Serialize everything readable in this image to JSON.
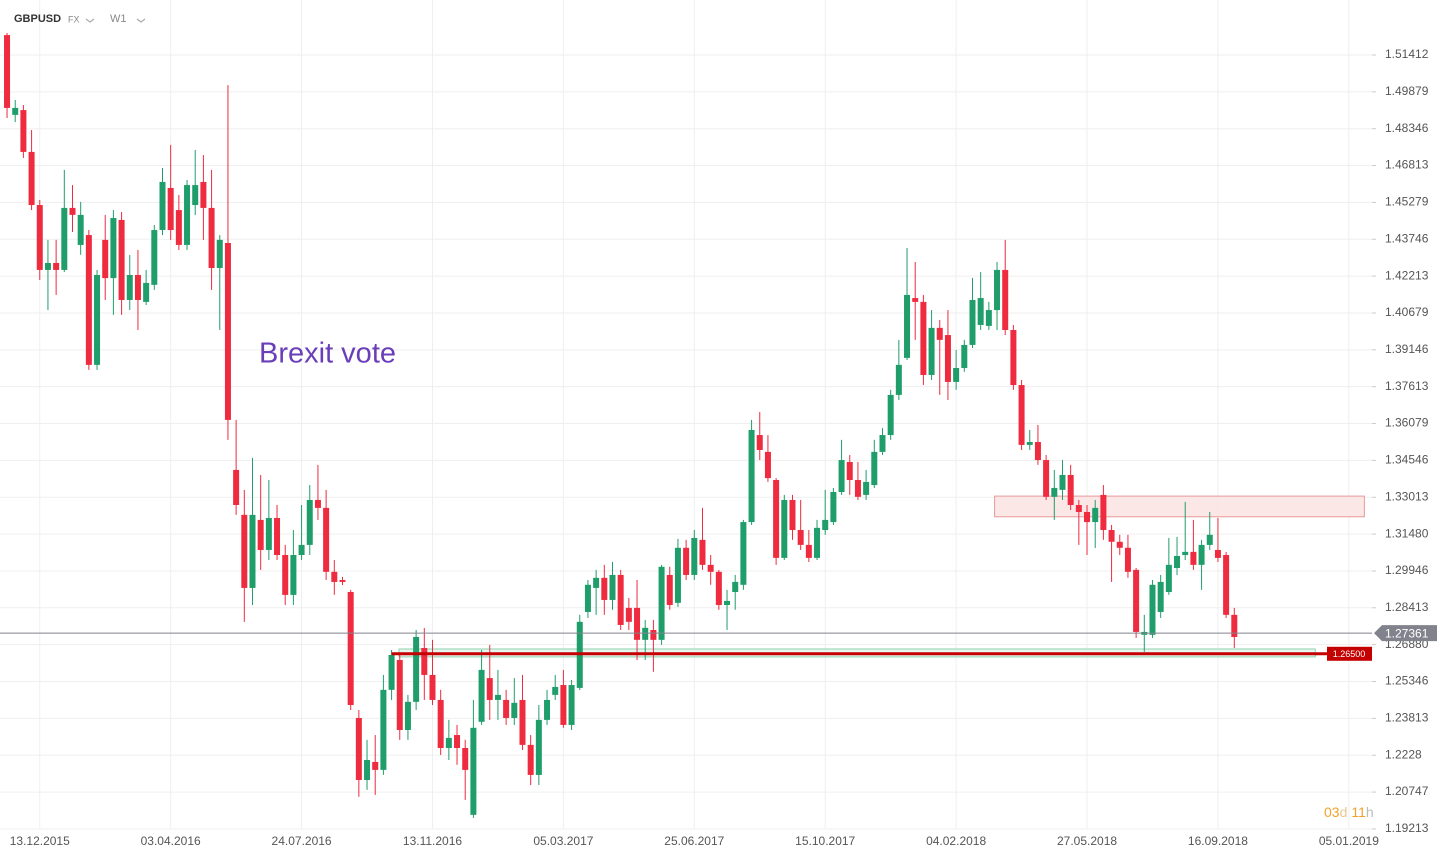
{
  "chart_data": {
    "type": "candlestick",
    "symbol": "GBPUSD",
    "market": "FX",
    "timeframe": "W1",
    "annotation_text": "Brexit vote",
    "up_color": "#1f9e6b",
    "down_color": "#ee2b3f",
    "ylim": [
      1.1842,
      1.537
    ],
    "yticks": [
      1.51412,
      1.49879,
      1.48346,
      1.46813,
      1.45279,
      1.43746,
      1.42213,
      1.40679,
      1.39146,
      1.37613,
      1.36079,
      1.34546,
      1.33013,
      {
        "value": 1.3148,
        "label": "1.31480"
      },
      1.29946,
      1.28413,
      {
        "value": 1.2688,
        "label": "1.26880"
      },
      1.25346,
      1.23813,
      1.2228,
      1.20747,
      1.19213
    ],
    "xlim": [
      -0.86,
      166.83
    ],
    "xticks": [
      {
        "value": 4,
        "label": "13.12.2015"
      },
      {
        "value": 20,
        "label": "03.04.2016"
      },
      {
        "value": 36,
        "label": "24.07.2016"
      },
      {
        "value": 52,
        "label": "13.11.2016"
      },
      {
        "value": 68,
        "label": "05.03.2017"
      },
      {
        "value": 84,
        "label": "25.06.2017"
      },
      {
        "value": 100,
        "label": "15.10.2017"
      },
      {
        "value": 116,
        "label": "04.02.2018"
      },
      {
        "value": 132,
        "label": "27.05.2018"
      },
      {
        "value": 148,
        "label": "16.09.2018"
      },
      {
        "value": 164,
        "label": "05.01.2019"
      }
    ],
    "grid": true,
    "open": [
      1.5224,
      1.4892,
      1.4912,
      1.4738,
      1.4517,
      1.4247,
      1.4276,
      1.4247,
      1.4505,
      1.4351,
      1.4392,
      1.3852,
      1.4372,
      1.4213,
      1.4455,
      1.4122,
      1.4226,
      1.4114,
      1.4185,
      1.4413,
      1.4588,
      1.4496,
      1.4351,
      1.4517,
      1.4613,
      1.4505,
      1.4255,
      1.4359,
      1.3415,
      1.3228,
      1.2924,
      1.3207,
      1.3082,
      1.3215,
      1.3061,
      1.2895,
      1.3061,
      1.3103,
      1.329,
      1.3257,
      1.2991,
      1.2957,
      1.2907,
      1.2383,
      1.2125,
      1.22,
      1.2167,
      1.25,
      1.2624,
      1.2333,
      1.245,
      1.2674,
      1.2562,
      1.2458,
      1.2258,
      1.2312,
      1.2258,
      1.198,
      1.2367,
      1.2549,
      1.2458,
      1.2458,
      1.2383,
      1.2458,
      1.2271,
      1.2146,
      1.2375,
      1.2479,
      1.252,
      1.2354,
      1.2508,
      1.2824,
      1.2924,
      1.2966,
      1.2874,
      1.2978,
      1.2841,
      1.2841,
      1.2708,
      1.2749,
      1.2708,
      1.2978,
      1.2862,
      1.3091,
      1.2978,
      1.3124,
      1.302,
      1.2991,
      1.2853,
      1.2907,
      1.2937,
      1.3198,
      1.356,
      1.349,
      1.3373,
      1.3049,
      1.329,
      1.3165,
      1.3103,
      1.3049,
      1.3165,
      1.3198,
      1.3323,
      1.3448,
      1.3373,
      1.3311,
      1.3352,
      1.349,
      1.356,
      1.3727,
      1.3881,
      1.413,
      1.4114,
      1.381,
      1.4006,
      1.3976,
      1.3781,
      1.3839,
      1.3935,
      1.4018,
      1.4014,
      1.408,
      1.4247,
      1.3997,
      1.3768,
      1.3519,
      1.3531,
      1.3456,
      1.3303,
      1.3332,
      1.3394,
      1.3269,
      1.324,
      1.3198,
      1.3311,
      1.3165,
      1.3116,
      1.3091,
      1.2999,
      1.2729,
      1.2729,
      1.2824,
      1.2907,
      1.3007,
      1.3061,
      1.3074,
      1.302,
      1.3103,
      1.3082,
      1.3061,
      1.2812
    ],
    "high": [
      1.5233,
      1.4954,
      1.4933,
      1.4829,
      1.4538,
      1.4372,
      1.4372,
      1.4663,
      1.46,
      1.453,
      1.4413,
      1.4247,
      1.4476,
      1.4496,
      1.4488,
      1.4309,
      1.433,
      1.4247,
      1.4434,
      1.4671,
      1.4767,
      1.4559,
      1.4621,
      1.4746,
      1.4725,
      1.4663,
      1.4392,
      1.5016,
      1.3623,
      1.3332,
      1.3465,
      1.3394,
      1.3373,
      1.3269,
      1.3103,
      1.3165,
      1.3269,
      1.3352,
      1.3436,
      1.3332,
      1.304,
      1.297,
      1.2916,
      1.2416,
      1.2292,
      1.2312,
      1.2562,
      1.2666,
      1.2645,
      1.2479,
      1.2749,
      1.2757,
      1.2708,
      1.25,
      1.2375,
      1.2354,
      1.2292,
      1.2458,
      1.2666,
      1.2687,
      1.2583,
      1.25,
      1.2549,
      1.2562,
      1.2312,
      1.2437,
      1.25,
      1.2562,
      1.2583,
      1.2541,
      1.2812,
      1.2957,
      1.2999,
      1.302,
      1.3032,
      1.2999,
      1.2882,
      1.2957,
      1.2791,
      1.2791,
      1.302,
      1.3012,
      1.3128,
      1.3124,
      1.3165,
      1.3257,
      1.3061,
      1.2999,
      1.2916,
      1.2978,
      1.3207,
      1.3623,
      1.3656,
      1.356,
      1.3381,
      1.3311,
      1.3311,
      1.329,
      1.3165,
      1.3207,
      1.3332,
      1.334,
      1.354,
      1.3477,
      1.3448,
      1.3415,
      1.354,
      1.3589,
      1.3748,
      1.3956,
      1.4338,
      1.428,
      1.4143,
      1.408,
      1.4039,
      1.408,
      1.3914,
      1.3956,
      1.4214,
      1.4238,
      1.4114,
      1.428,
      1.4372,
      1.4018,
      1.3789,
      1.3581,
      1.3602,
      1.3477,
      1.3415,
      1.3456,
      1.3436,
      1.329,
      1.3269,
      1.329,
      1.3352,
      1.3186,
      1.3145,
      1.3145,
      1.3007,
      1.2812,
      1.2957,
      1.2978,
      1.3132,
      1.3136,
      1.3282,
      1.3207,
      1.3124,
      1.324,
      1.3215,
      1.3074,
      1.2841
    ],
    "low": [
      1.4879,
      1.4862,
      1.4713,
      1.4496,
      1.4205,
      1.408,
      1.4143,
      1.4238,
      1.4405,
      1.431,
      1.3831,
      1.3831,
      1.4122,
      1.406,
      1.406,
      1.408,
      1.3997,
      1.4101,
      1.4164,
      1.4392,
      1.4372,
      1.433,
      1.433,
      1.4475,
      1.4372,
      1.4164,
      1.3997,
      1.354,
      1.3228,
      1.2783,
      1.2853,
      1.2999,
      1.304,
      1.304,
      1.2853,
      1.2853,
      1.304,
      1.3061,
      1.3207,
      1.2957,
      1.2895,
      1.2936,
      1.2416,
      1.2055,
      1.2084,
      1.2063,
      1.2146,
      1.2458,
      1.2292,
      1.2292,
      1.2416,
      1.2458,
      1.2437,
      1.2229,
      1.2208,
      1.2188,
      1.2042,
      1.1967,
      1.2354,
      1.2375,
      1.2375,
      1.2354,
      1.2354,
      1.225,
      1.2104,
      1.2104,
      1.2354,
      1.2458,
      1.2342,
      1.2333,
      1.2499,
      1.2799,
      1.2812,
      1.2812,
      1.2833,
      1.2749,
      1.2749,
      1.2624,
      1.2624,
      1.2575,
      1.2687,
      1.2833,
      1.2845,
      1.2957,
      1.2957,
      1.2999,
      1.2937,
      1.2833,
      1.2749,
      1.2833,
      1.2916,
      1.3186,
      1.3456,
      1.3365,
      1.302,
      1.304,
      1.3124,
      1.3082,
      1.3032,
      1.304,
      1.3145,
      1.3186,
      1.3311,
      1.3311,
      1.329,
      1.329,
      1.334,
      1.3477,
      1.354,
      1.3706,
      1.3872,
      1.3956,
      1.3768,
      1.3789,
      1.3727,
      1.3706,
      1.3748,
      1.3823,
      1.3922,
      1.3997,
      1.3997,
      1.3997,
      1.3976,
      1.3748,
      1.3498,
      1.3498,
      1.3436,
      1.329,
      1.3207,
      1.329,
      1.3248,
      1.3103,
      1.3061,
      1.309,
      1.3124,
      1.2949,
      1.3061,
      1.2966,
      1.2716,
      1.2658,
      1.2716,
      1.2799,
      1.2895,
      1.2978,
      1.304,
      1.2999,
      1.2916,
      1.3082,
      1.3032,
      1.2799,
      1.2674
    ],
    "close": [
      1.4921,
      1.4921,
      1.4738,
      1.4517,
      1.4247,
      1.4276,
      1.4247,
      1.4505,
      1.4476,
      1.4476,
      1.3852,
      1.4226,
      1.4213,
      1.4463,
      1.4122,
      1.4226,
      1.4122,
      1.4193,
      1.4413,
      1.4613,
      1.4413,
      1.4351,
      1.46,
      1.46,
      1.4505,
      1.4255,
      1.4372,
      1.3623,
      1.3269,
      1.2924,
      1.3228,
      1.3082,
      1.3215,
      1.3061,
      1.2895,
      1.3061,
      1.3103,
      1.329,
      1.3257,
      1.2991,
      1.2949,
      1.2949,
      1.2437,
      1.2125,
      1.2208,
      1.2167,
      1.25,
      1.2645,
      1.2333,
      1.245,
      1.272,
      1.2562,
      1.2458,
      1.2258,
      1.23,
      1.2258,
      1.2167,
      1.2342,
      1.2583,
      1.2458,
      1.2479,
      1.2383,
      1.2446,
      1.2271,
      1.2146,
      1.2375,
      1.2458,
      1.2512,
      1.2354,
      1.252,
      1.2783,
      1.2937,
      1.2966,
      1.2874,
      1.2978,
      1.277,
      1.2783,
      1.2708,
      1.2758,
      1.2708,
      1.3012,
      1.2853,
      1.3091,
      1.2978,
      1.3132,
      1.302,
      1.2991,
      1.2853,
      1.287,
      1.2949,
      1.3198,
      1.3581,
      1.3498,
      1.3381,
      1.3049,
      1.329,
      1.3165,
      1.3103,
      1.3049,
      1.3174,
      1.3207,
      1.3323,
      1.3456,
      1.3373,
      1.3303,
      1.3365,
      1.349,
      1.356,
      1.3727,
      1.3852,
      1.4143,
      1.4114,
      1.381,
      1.4006,
      1.3956,
      1.3781,
      1.3839,
      1.3935,
      1.4122,
      1.413,
      1.408,
      1.4247,
      1.3997,
      1.3768,
      1.3519,
      1.3531,
      1.3456,
      1.3303,
      1.334,
      1.3394,
      1.3269,
      1.324,
      1.3198,
      1.3257,
      1.3165,
      1.3116,
      1.3091,
      1.2991,
      1.2741,
      1.2741,
      1.2937,
      1.2949,
      1.302,
      1.3057,
      1.3074,
      1.302,
      1.3103,
      1.3145,
      1.3049,
      1.2812,
      1.272
    ],
    "price_lines": [
      {
        "price": 1.27361,
        "color": "#80838c"
      },
      {
        "price": {
          "value": 1.265,
          "label": "1.26500"
        },
        "color": "#c40000",
        "start": 47
      }
    ],
    "zones": [
      {
        "y": [
          1.322,
          1.3306
        ],
        "x": [
          120.7,
          165.9
        ],
        "fill": "#fbe3e3",
        "stroke": "#e89a9a"
      },
      {
        "y": [
          1.2637,
          1.267
        ],
        "x": [
          47.9,
          159.9
        ],
        "fill": "#e3f6ec",
        "stroke": "#8fd2ae"
      }
    ],
    "countdown": {
      "days": "03",
      "day_unit": "d",
      "hours": "11",
      "hour_unit": "h"
    }
  }
}
